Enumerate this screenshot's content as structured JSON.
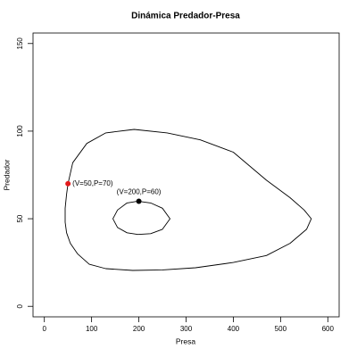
{
  "chart_data": {
    "type": "phase",
    "title": "Dinámica Predador-Presa",
    "x_label": "Presa",
    "y_label": "Predador",
    "xlim": [
      -24,
      624
    ],
    "ylim": [
      -6,
      156
    ],
    "xticks": [
      0,
      100,
      200,
      300,
      400,
      500,
      600
    ],
    "yticks": [
      0,
      50,
      100,
      150
    ],
    "series": [
      {
        "color": "#000000",
        "x": [
          50,
          60,
          90,
          130,
          190,
          260,
          330,
          400,
          470,
          520,
          550,
          565,
          555,
          520,
          470,
          400,
          320,
          250,
          187,
          130,
          95,
          70,
          55,
          47,
          44,
          44,
          47,
          50
        ],
        "y": [
          70,
          82,
          93,
          99,
          101,
          99,
          95,
          88,
          72,
          62,
          55,
          50,
          44,
          36,
          29,
          25,
          22,
          20.8,
          20.5,
          21.5,
          24,
          30,
          36,
          42,
          48,
          56,
          64,
          70
        ]
      },
      {
        "color": "#000000",
        "x": [
          198,
          225,
          250,
          266,
          250,
          225,
          198,
          175,
          155,
          145,
          155,
          175,
          198
        ],
        "y": [
          60,
          59,
          56,
          50,
          44,
          41.5,
          41,
          42,
          45,
          50,
          55,
          59,
          60
        ]
      }
    ],
    "points": [
      {
        "x": 50,
        "y": 70,
        "label": "(V=50,P=70)",
        "color": "#e31a1c"
      },
      {
        "x": 200,
        "y": 60,
        "label": "(V=200,P=60)",
        "color": "#000000"
      }
    ]
  }
}
